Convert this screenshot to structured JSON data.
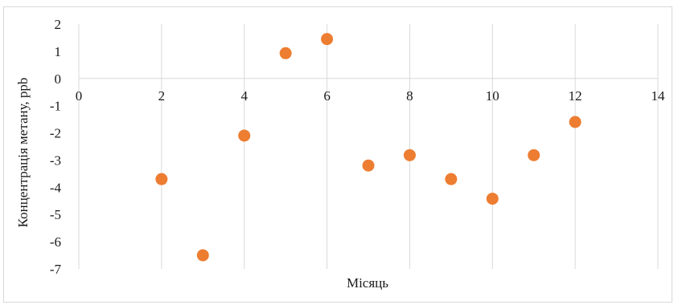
{
  "chart_data": {
    "type": "scatter",
    "title": "",
    "xlabel": "Місяць",
    "ylabel": "Концентрація метану, ppb",
    "xlim": [
      0,
      14
    ],
    "ylim": [
      -7,
      2
    ],
    "x_ticks": [
      0,
      2,
      4,
      6,
      8,
      10,
      12,
      14
    ],
    "y_ticks": [
      2,
      1,
      0,
      -1,
      -2,
      -3,
      -4,
      -5,
      -6,
      -7
    ],
    "grid": "vertical",
    "legend": "none",
    "marker_color": "#ED7D31",
    "grid_color": "#d9d9d9",
    "series": [
      {
        "points": [
          {
            "x": 2,
            "y": -3.7
          },
          {
            "x": 3,
            "y": -6.5
          },
          {
            "x": 4,
            "y": -2.1
          },
          {
            "x": 5,
            "y": 0.93
          },
          {
            "x": 6,
            "y": 1.45
          },
          {
            "x": 7,
            "y": -3.2
          },
          {
            "x": 8,
            "y": -2.82
          },
          {
            "x": 9,
            "y": -3.7
          },
          {
            "x": 10,
            "y": -4.42
          },
          {
            "x": 11,
            "y": -2.82
          },
          {
            "x": 12,
            "y": -1.6
          }
        ]
      }
    ]
  }
}
